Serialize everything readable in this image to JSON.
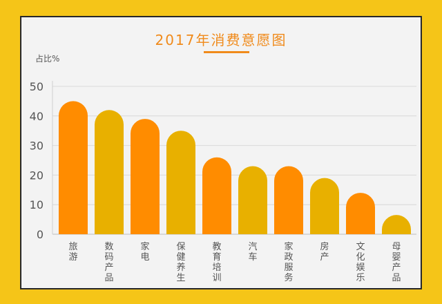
{
  "chart_data": {
    "type": "bar",
    "title": "2017年消费意愿图",
    "ylabel": "占比%",
    "xlabel": "",
    "ylim": [
      0,
      50
    ],
    "yticks": [
      0,
      10,
      20,
      30,
      40,
      50
    ],
    "grid": true,
    "categories": [
      "旅游",
      "数码产品",
      "家电",
      "保健养生",
      "教育培训",
      "汽车",
      "家政服务",
      "房产",
      "文化娱乐",
      "母婴产品"
    ],
    "values": [
      45,
      42,
      39,
      35,
      26,
      23,
      23,
      19,
      14,
      6.5
    ],
    "bar_colors": [
      "#FF8C00",
      "#E8B000",
      "#FF8C00",
      "#E8B000",
      "#FF8C00",
      "#E8B000",
      "#FF8C00",
      "#E8B000",
      "#FF8C00",
      "#E8B000"
    ],
    "title_color": "#F08A1A"
  }
}
